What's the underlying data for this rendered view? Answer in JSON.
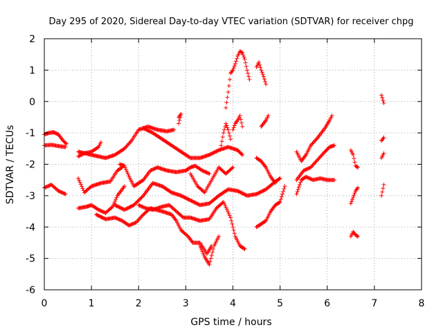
{
  "chart_data": {
    "type": "scatter",
    "title": "Day 295 of 2020, Sidereal Day-to-day VTEC variation (SDTVAR) for receiver chpg",
    "xlabel": "GPS time / hours",
    "ylabel": "SDTVAR / TECUs",
    "xlim": [
      0,
      8
    ],
    "ylim": [
      -6,
      2
    ],
    "xticks": [
      "0",
      "1",
      "2",
      "3",
      "4",
      "5",
      "6",
      "7",
      "8"
    ],
    "yticks": [
      "-6",
      "-5",
      "-4",
      "-3",
      "-2",
      "-1",
      "0",
      "1",
      "2"
    ],
    "grid": true,
    "marker": "+",
    "color": "#ff0000",
    "series": [
      {
        "name": "trace-1",
        "points": [
          [
            0.0,
            -1.05
          ],
          [
            0.1,
            -1.0
          ],
          [
            0.2,
            -0.98
          ],
          [
            0.3,
            -1.05
          ],
          [
            0.4,
            -1.25
          ],
          [
            0.47,
            -1.35
          ]
        ]
      },
      {
        "name": "trace-2",
        "points": [
          [
            0.0,
            -1.4
          ],
          [
            0.15,
            -1.38
          ],
          [
            0.3,
            -1.42
          ],
          [
            0.45,
            -1.45
          ]
        ]
      },
      {
        "name": "trace-3",
        "points": [
          [
            0.0,
            -2.75
          ],
          [
            0.15,
            -2.65
          ],
          [
            0.3,
            -2.85
          ],
          [
            0.45,
            -2.95
          ]
        ]
      },
      {
        "name": "trace-4",
        "points": [
          [
            0.72,
            -1.75
          ],
          [
            0.85,
            -1.65
          ],
          [
            1.0,
            -1.6
          ],
          [
            1.15,
            -1.45
          ],
          [
            1.2,
            -1.3
          ]
        ]
      },
      {
        "name": "trace-5",
        "points": [
          [
            0.72,
            -2.45
          ],
          [
            0.85,
            -2.9
          ],
          [
            1.0,
            -2.7
          ],
          [
            1.2,
            -2.6
          ],
          [
            1.4,
            -2.55
          ],
          [
            1.55,
            -2.2
          ],
          [
            1.65,
            -2.1
          ]
        ]
      },
      {
        "name": "trace-6",
        "points": [
          [
            0.72,
            -3.4
          ],
          [
            0.9,
            -3.35
          ],
          [
            1.0,
            -3.3
          ],
          [
            1.15,
            -3.45
          ],
          [
            1.3,
            -3.55
          ],
          [
            1.45,
            -3.35
          ],
          [
            1.55,
            -3.0
          ],
          [
            1.7,
            -2.7
          ]
        ]
      },
      {
        "name": "trace-7",
        "points": [
          [
            0.72,
            -1.6
          ],
          [
            1.0,
            -1.7
          ],
          [
            1.3,
            -1.8
          ],
          [
            1.5,
            -1.7
          ],
          [
            1.7,
            -1.5
          ],
          [
            1.85,
            -1.25
          ],
          [
            2.0,
            -0.9
          ],
          [
            2.2,
            -0.8
          ],
          [
            2.4,
            -0.9
          ],
          [
            2.6,
            -0.95
          ],
          [
            2.75,
            -0.9
          ]
        ]
      },
      {
        "name": "trace-8",
        "points": [
          [
            1.1,
            -3.6
          ],
          [
            1.3,
            -3.75
          ],
          [
            1.5,
            -3.7
          ],
          [
            1.65,
            -3.8
          ],
          [
            1.8,
            -3.95
          ],
          [
            1.95,
            -3.85
          ],
          [
            2.1,
            -3.6
          ],
          [
            2.25,
            -3.4
          ],
          [
            2.5,
            -3.5
          ],
          [
            2.7,
            -3.6
          ],
          [
            2.8,
            -3.8
          ],
          [
            2.9,
            -4.1
          ],
          [
            3.05,
            -4.3
          ],
          [
            3.15,
            -4.5
          ],
          [
            3.3,
            -4.5
          ],
          [
            3.45,
            -4.85
          ],
          [
            3.55,
            -4.6
          ]
        ]
      },
      {
        "name": "trace-9",
        "points": [
          [
            1.6,
            -2.0
          ],
          [
            1.7,
            -2.05
          ],
          [
            1.8,
            -2.4
          ],
          [
            1.9,
            -2.7
          ],
          [
            2.0,
            -2.6
          ],
          [
            2.1,
            -2.5
          ],
          [
            2.25,
            -2.2
          ],
          [
            2.4,
            -2.1
          ],
          [
            2.6,
            -2.2
          ],
          [
            2.8,
            -2.25
          ],
          [
            3.0,
            -2.2
          ],
          [
            3.1,
            -2.1
          ],
          [
            3.2,
            -2.05
          ],
          [
            3.35,
            -2.2
          ],
          [
            3.5,
            -2.3
          ]
        ]
      },
      {
        "name": "trace-10",
        "points": [
          [
            1.5,
            -3.3
          ],
          [
            1.7,
            -3.45
          ],
          [
            1.9,
            -3.3
          ],
          [
            2.1,
            -3.0
          ],
          [
            2.3,
            -2.6
          ],
          [
            2.5,
            -2.7
          ],
          [
            2.7,
            -2.9
          ],
          [
            2.9,
            -3.0
          ],
          [
            3.1,
            -3.15
          ],
          [
            3.3,
            -3.3
          ],
          [
            3.5,
            -3.25
          ],
          [
            3.7,
            -3.0
          ],
          [
            3.9,
            -2.8
          ],
          [
            4.1,
            -2.85
          ],
          [
            4.3,
            -3.0
          ],
          [
            4.5,
            -2.95
          ],
          [
            4.7,
            -2.8
          ],
          [
            4.9,
            -2.55
          ],
          [
            5.0,
            -2.45
          ]
        ]
      },
      {
        "name": "trace-11",
        "points": [
          [
            2.1,
            -0.85
          ],
          [
            2.3,
            -1.0
          ],
          [
            2.5,
            -1.2
          ],
          [
            2.7,
            -1.4
          ],
          [
            2.9,
            -1.6
          ],
          [
            3.1,
            -1.8
          ],
          [
            3.3,
            -1.8
          ],
          [
            3.5,
            -1.7
          ],
          [
            3.7,
            -1.55
          ],
          [
            3.9,
            -1.45
          ],
          [
            4.1,
            -1.55
          ],
          [
            4.2,
            -1.7
          ]
        ]
      },
      {
        "name": "trace-12",
        "points": [
          [
            2.0,
            -3.3
          ],
          [
            2.15,
            -3.4
          ],
          [
            2.3,
            -3.45
          ],
          [
            2.5,
            -3.35
          ],
          [
            2.65,
            -3.3
          ],
          [
            2.8,
            -3.5
          ],
          [
            2.95,
            -3.7
          ],
          [
            3.1,
            -3.7
          ],
          [
            3.3,
            -3.8
          ],
          [
            3.5,
            -3.75
          ],
          [
            3.65,
            -3.4
          ],
          [
            3.8,
            -3.2
          ],
          [
            3.95,
            -3.7
          ],
          [
            4.05,
            -4.3
          ],
          [
            4.15,
            -4.6
          ],
          [
            4.25,
            -4.7
          ]
        ]
      },
      {
        "name": "trace-13",
        "points": [
          [
            3.3,
            -4.6
          ],
          [
            3.4,
            -4.95
          ],
          [
            3.5,
            -5.2
          ],
          [
            3.6,
            -4.6
          ],
          [
            3.7,
            -4.3
          ]
        ]
      },
      {
        "name": "trace-14",
        "points": [
          [
            3.1,
            -2.3
          ],
          [
            3.25,
            -2.7
          ],
          [
            3.4,
            -2.9
          ],
          [
            3.55,
            -2.5
          ],
          [
            3.7,
            -2.1
          ],
          [
            3.85,
            -2.3
          ],
          [
            4.0,
            -2.1
          ]
        ]
      },
      {
        "name": "trace-15",
        "points": [
          [
            3.75,
            -1.4
          ],
          [
            3.8,
            -1.0
          ],
          [
            3.85,
            -0.7
          ],
          [
            3.9,
            -0.9
          ],
          [
            3.95,
            -1.2
          ]
        ]
      },
      {
        "name": "trace-16",
        "points": [
          [
            3.85,
            -0.2
          ],
          [
            3.9,
            0.3
          ],
          [
            3.95,
            0.9
          ],
          [
            4.0,
            1.0
          ],
          [
            4.05,
            1.2
          ],
          [
            4.1,
            1.45
          ],
          [
            4.15,
            1.6
          ],
          [
            4.2,
            1.55
          ],
          [
            4.25,
            1.35
          ],
          [
            4.3,
            1.0
          ],
          [
            4.35,
            0.7
          ]
        ]
      },
      {
        "name": "trace-17",
        "points": [
          [
            4.0,
            -0.9
          ],
          [
            4.05,
            -0.7
          ],
          [
            4.1,
            -0.6
          ],
          [
            4.15,
            -0.45
          ],
          [
            4.2,
            -0.8
          ]
        ]
      },
      {
        "name": "trace-18",
        "points": [
          [
            4.5,
            1.1
          ],
          [
            4.55,
            1.25
          ],
          [
            4.6,
            1.0
          ],
          [
            4.65,
            0.8
          ],
          [
            4.7,
            0.55
          ]
        ]
      },
      {
        "name": "trace-19",
        "points": [
          [
            4.6,
            -0.8
          ],
          [
            4.7,
            -0.6
          ],
          [
            4.75,
            -0.45
          ]
        ]
      },
      {
        "name": "trace-20",
        "points": [
          [
            4.5,
            -1.8
          ],
          [
            4.6,
            -1.9
          ],
          [
            4.7,
            -2.1
          ],
          [
            4.8,
            -2.4
          ],
          [
            4.9,
            -2.6
          ]
        ]
      },
      {
        "name": "trace-21",
        "points": [
          [
            4.5,
            -4.0
          ],
          [
            4.6,
            -3.9
          ],
          [
            4.7,
            -3.8
          ],
          [
            4.8,
            -3.5
          ],
          [
            4.9,
            -3.3
          ],
          [
            5.0,
            -3.2
          ],
          [
            5.1,
            -2.7
          ]
        ]
      },
      {
        "name": "trace-22",
        "points": [
          [
            2.85,
            -0.5
          ],
          [
            2.9,
            -0.4
          ],
          [
            2.85,
            -0.7
          ]
        ]
      },
      {
        "name": "trace-23",
        "points": [
          [
            5.35,
            -1.6
          ],
          [
            5.45,
            -1.9
          ],
          [
            5.55,
            -1.7
          ],
          [
            5.65,
            -1.4
          ],
          [
            5.8,
            -1.15
          ],
          [
            5.95,
            -0.85
          ],
          [
            6.05,
            -0.6
          ],
          [
            6.1,
            -0.45
          ]
        ]
      },
      {
        "name": "trace-24",
        "points": [
          [
            5.35,
            -2.5
          ],
          [
            5.5,
            -2.2
          ],
          [
            5.65,
            -2.1
          ],
          [
            5.8,
            -1.85
          ],
          [
            5.95,
            -1.6
          ],
          [
            6.05,
            -1.45
          ],
          [
            6.15,
            -1.4
          ]
        ]
      },
      {
        "name": "trace-25",
        "points": [
          [
            5.35,
            -2.95
          ],
          [
            5.45,
            -2.5
          ],
          [
            5.55,
            -2.4
          ],
          [
            5.7,
            -2.5
          ],
          [
            5.85,
            -2.45
          ],
          [
            6.0,
            -2.5
          ],
          [
            6.15,
            -2.5
          ]
        ]
      },
      {
        "name": "trace-26",
        "points": [
          [
            6.5,
            -1.55
          ],
          [
            6.55,
            -1.7
          ],
          [
            6.6,
            -2.05
          ],
          [
            6.65,
            -2.1
          ]
        ]
      },
      {
        "name": "trace-27",
        "points": [
          [
            6.5,
            -3.25
          ],
          [
            6.55,
            -3.05
          ],
          [
            6.6,
            -2.85
          ],
          [
            6.65,
            -2.75
          ]
        ]
      },
      {
        "name": "trace-28",
        "points": [
          [
            6.5,
            -4.3
          ],
          [
            6.55,
            -4.15
          ],
          [
            6.6,
            -4.25
          ],
          [
            6.65,
            -4.3
          ]
        ]
      },
      {
        "name": "trace-29",
        "points": [
          [
            7.15,
            0.2
          ],
          [
            7.2,
            -0.05
          ]
        ]
      },
      {
        "name": "trace-30",
        "points": [
          [
            7.15,
            -1.25
          ],
          [
            7.2,
            -1.15
          ]
        ]
      },
      {
        "name": "trace-31",
        "points": [
          [
            7.15,
            -1.8
          ],
          [
            7.2,
            -1.65
          ]
        ]
      },
      {
        "name": "trace-32",
        "points": [
          [
            7.15,
            -3.0
          ],
          [
            7.2,
            -2.65
          ]
        ]
      }
    ]
  }
}
